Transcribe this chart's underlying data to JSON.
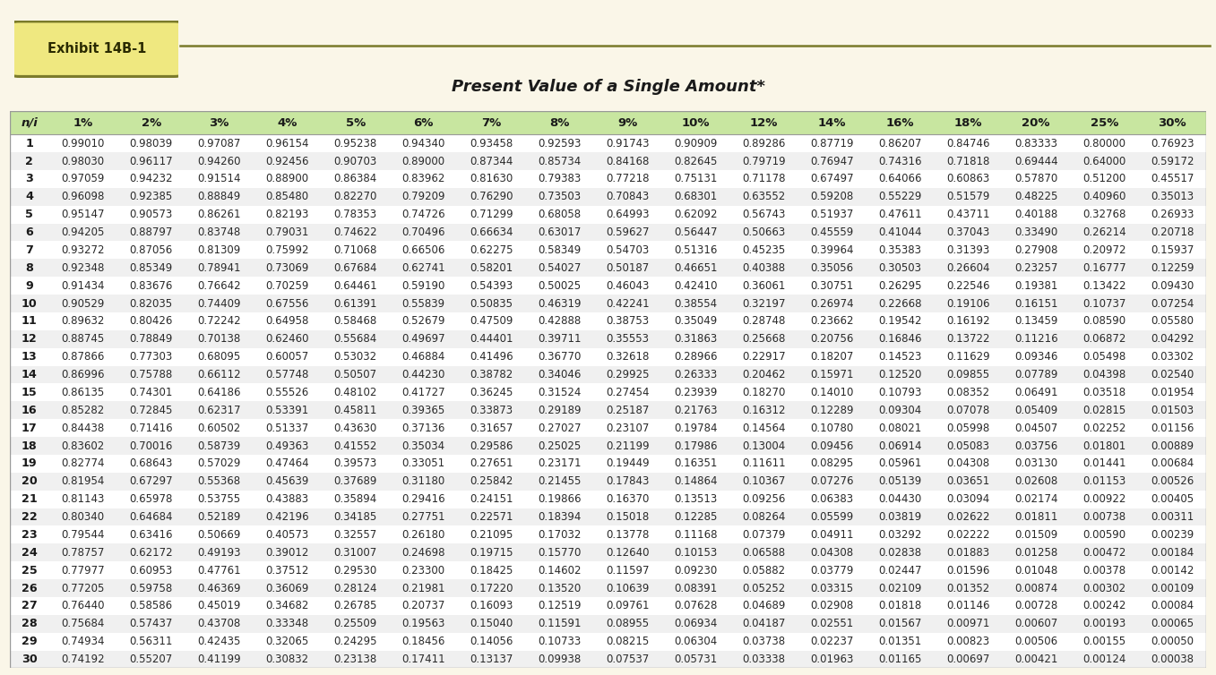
{
  "title": "Present Value of a Single Amount*",
  "exhibit_label": "Exhibit 14B-1",
  "bg_color": "#faf6e8",
  "header_bg": "#c8e6a0",
  "columns": [
    "n/i",
    "1%",
    "2%",
    "3%",
    "4%",
    "5%",
    "6%",
    "7%",
    "8%",
    "9%",
    "10%",
    "12%",
    "14%",
    "16%",
    "18%",
    "20%",
    "25%",
    "30%"
  ],
  "rows": [
    [
      1,
      0.9901,
      0.98039,
      0.97087,
      0.96154,
      0.95238,
      0.9434,
      0.93458,
      0.92593,
      0.91743,
      0.90909,
      0.89286,
      0.87719,
      0.86207,
      0.84746,
      0.83333,
      0.8,
      0.76923
    ],
    [
      2,
      0.9803,
      0.96117,
      0.9426,
      0.92456,
      0.90703,
      0.89,
      0.87344,
      0.85734,
      0.84168,
      0.82645,
      0.79719,
      0.76947,
      0.74316,
      0.71818,
      0.69444,
      0.64,
      0.59172
    ],
    [
      3,
      0.97059,
      0.94232,
      0.91514,
      0.889,
      0.86384,
      0.83962,
      0.8163,
      0.79383,
      0.77218,
      0.75131,
      0.71178,
      0.67497,
      0.64066,
      0.60863,
      0.5787,
      0.512,
      0.45517
    ],
    [
      4,
      0.96098,
      0.92385,
      0.88849,
      0.8548,
      0.8227,
      0.79209,
      0.7629,
      0.73503,
      0.70843,
      0.68301,
      0.63552,
      0.59208,
      0.55229,
      0.51579,
      0.48225,
      0.4096,
      0.35013
    ],
    [
      5,
      0.95147,
      0.90573,
      0.86261,
      0.82193,
      0.78353,
      0.74726,
      0.71299,
      0.68058,
      0.64993,
      0.62092,
      0.56743,
      0.51937,
      0.47611,
      0.43711,
      0.40188,
      0.32768,
      0.26933
    ],
    [
      6,
      0.94205,
      0.88797,
      0.83748,
      0.79031,
      0.74622,
      0.70496,
      0.66634,
      0.63017,
      0.59627,
      0.56447,
      0.50663,
      0.45559,
      0.41044,
      0.37043,
      0.3349,
      0.26214,
      0.20718
    ],
    [
      7,
      0.93272,
      0.87056,
      0.81309,
      0.75992,
      0.71068,
      0.66506,
      0.62275,
      0.58349,
      0.54703,
      0.51316,
      0.45235,
      0.39964,
      0.35383,
      0.31393,
      0.27908,
      0.20972,
      0.15937
    ],
    [
      8,
      0.92348,
      0.85349,
      0.78941,
      0.73069,
      0.67684,
      0.62741,
      0.58201,
      0.54027,
      0.50187,
      0.46651,
      0.40388,
      0.35056,
      0.30503,
      0.26604,
      0.23257,
      0.16777,
      0.12259
    ],
    [
      9,
      0.91434,
      0.83676,
      0.76642,
      0.70259,
      0.64461,
      0.5919,
      0.54393,
      0.50025,
      0.46043,
      0.4241,
      0.36061,
      0.30751,
      0.26295,
      0.22546,
      0.19381,
      0.13422,
      0.0943
    ],
    [
      10,
      0.90529,
      0.82035,
      0.74409,
      0.67556,
      0.61391,
      0.55839,
      0.50835,
      0.46319,
      0.42241,
      0.38554,
      0.32197,
      0.26974,
      0.22668,
      0.19106,
      0.16151,
      0.10737,
      0.07254
    ],
    [
      11,
      0.89632,
      0.80426,
      0.72242,
      0.64958,
      0.58468,
      0.52679,
      0.47509,
      0.42888,
      0.38753,
      0.35049,
      0.28748,
      0.23662,
      0.19542,
      0.16192,
      0.13459,
      0.0859,
      0.0558
    ],
    [
      12,
      0.88745,
      0.78849,
      0.70138,
      0.6246,
      0.55684,
      0.49697,
      0.44401,
      0.39711,
      0.35553,
      0.31863,
      0.25668,
      0.20756,
      0.16846,
      0.13722,
      0.11216,
      0.06872,
      0.04292
    ],
    [
      13,
      0.87866,
      0.77303,
      0.68095,
      0.60057,
      0.53032,
      0.46884,
      0.41496,
      0.3677,
      0.32618,
      0.28966,
      0.22917,
      0.18207,
      0.14523,
      0.11629,
      0.09346,
      0.05498,
      0.03302
    ],
    [
      14,
      0.86996,
      0.75788,
      0.66112,
      0.57748,
      0.50507,
      0.4423,
      0.38782,
      0.34046,
      0.29925,
      0.26333,
      0.20462,
      0.15971,
      0.1252,
      0.09855,
      0.07789,
      0.04398,
      0.0254
    ],
    [
      15,
      0.86135,
      0.74301,
      0.64186,
      0.55526,
      0.48102,
      0.41727,
      0.36245,
      0.31524,
      0.27454,
      0.23939,
      0.1827,
      0.1401,
      0.10793,
      0.08352,
      0.06491,
      0.03518,
      0.01954
    ],
    [
      16,
      0.85282,
      0.72845,
      0.62317,
      0.53391,
      0.45811,
      0.39365,
      0.33873,
      0.29189,
      0.25187,
      0.21763,
      0.16312,
      0.12289,
      0.09304,
      0.07078,
      0.05409,
      0.02815,
      0.01503
    ],
    [
      17,
      0.84438,
      0.71416,
      0.60502,
      0.51337,
      0.4363,
      0.37136,
      0.31657,
      0.27027,
      0.23107,
      0.19784,
      0.14564,
      0.1078,
      0.08021,
      0.05998,
      0.04507,
      0.02252,
      0.01156
    ],
    [
      18,
      0.83602,
      0.70016,
      0.58739,
      0.49363,
      0.41552,
      0.35034,
      0.29586,
      0.25025,
      0.21199,
      0.17986,
      0.13004,
      0.09456,
      0.06914,
      0.05083,
      0.03756,
      0.01801,
      0.00889
    ],
    [
      19,
      0.82774,
      0.68643,
      0.57029,
      0.47464,
      0.39573,
      0.33051,
      0.27651,
      0.23171,
      0.19449,
      0.16351,
      0.11611,
      0.08295,
      0.05961,
      0.04308,
      0.0313,
      0.01441,
      0.00684
    ],
    [
      20,
      0.81954,
      0.67297,
      0.55368,
      0.45639,
      0.37689,
      0.3118,
      0.25842,
      0.21455,
      0.17843,
      0.14864,
      0.10367,
      0.07276,
      0.05139,
      0.03651,
      0.02608,
      0.01153,
      0.00526
    ],
    [
      21,
      0.81143,
      0.65978,
      0.53755,
      0.43883,
      0.35894,
      0.29416,
      0.24151,
      0.19866,
      0.1637,
      0.13513,
      0.09256,
      0.06383,
      0.0443,
      0.03094,
      0.02174,
      0.00922,
      0.00405
    ],
    [
      22,
      0.8034,
      0.64684,
      0.52189,
      0.42196,
      0.34185,
      0.27751,
      0.22571,
      0.18394,
      0.15018,
      0.12285,
      0.08264,
      0.05599,
      0.03819,
      0.02622,
      0.01811,
      0.00738,
      0.00311
    ],
    [
      23,
      0.79544,
      0.63416,
      0.50669,
      0.40573,
      0.32557,
      0.2618,
      0.21095,
      0.17032,
      0.13778,
      0.11168,
      0.07379,
      0.04911,
      0.03292,
      0.02222,
      0.01509,
      0.0059,
      0.00239
    ],
    [
      24,
      0.78757,
      0.62172,
      0.49193,
      0.39012,
      0.31007,
      0.24698,
      0.19715,
      0.1577,
      0.1264,
      0.10153,
      0.06588,
      0.04308,
      0.02838,
      0.01883,
      0.01258,
      0.00472,
      0.00184
    ],
    [
      25,
      0.77977,
      0.60953,
      0.47761,
      0.37512,
      0.2953,
      0.233,
      0.18425,
      0.14602,
      0.11597,
      0.0923,
      0.05882,
      0.03779,
      0.02447,
      0.01596,
      0.01048,
      0.00378,
      0.00142
    ],
    [
      26,
      0.77205,
      0.59758,
      0.46369,
      0.36069,
      0.28124,
      0.21981,
      0.1722,
      0.1352,
      0.10639,
      0.08391,
      0.05252,
      0.03315,
      0.02109,
      0.01352,
      0.00874,
      0.00302,
      0.00109
    ],
    [
      27,
      0.7644,
      0.58586,
      0.45019,
      0.34682,
      0.26785,
      0.20737,
      0.16093,
      0.12519,
      0.09761,
      0.07628,
      0.04689,
      0.02908,
      0.01818,
      0.01146,
      0.00728,
      0.00242,
      0.00084
    ],
    [
      28,
      0.75684,
      0.57437,
      0.43708,
      0.33348,
      0.25509,
      0.19563,
      0.1504,
      0.11591,
      0.08955,
      0.06934,
      0.04187,
      0.02551,
      0.01567,
      0.00971,
      0.00607,
      0.00193,
      0.00065
    ],
    [
      29,
      0.74934,
      0.56311,
      0.42435,
      0.32065,
      0.24295,
      0.18456,
      0.14056,
      0.10733,
      0.08215,
      0.06304,
      0.03738,
      0.02237,
      0.01351,
      0.00823,
      0.00506,
      0.00155,
      0.0005
    ],
    [
      30,
      0.74192,
      0.55207,
      0.41199,
      0.30832,
      0.23138,
      0.17411,
      0.13137,
      0.09938,
      0.07537,
      0.05731,
      0.03338,
      0.01963,
      0.01165,
      0.00697,
      0.00421,
      0.00124,
      0.00038
    ]
  ]
}
